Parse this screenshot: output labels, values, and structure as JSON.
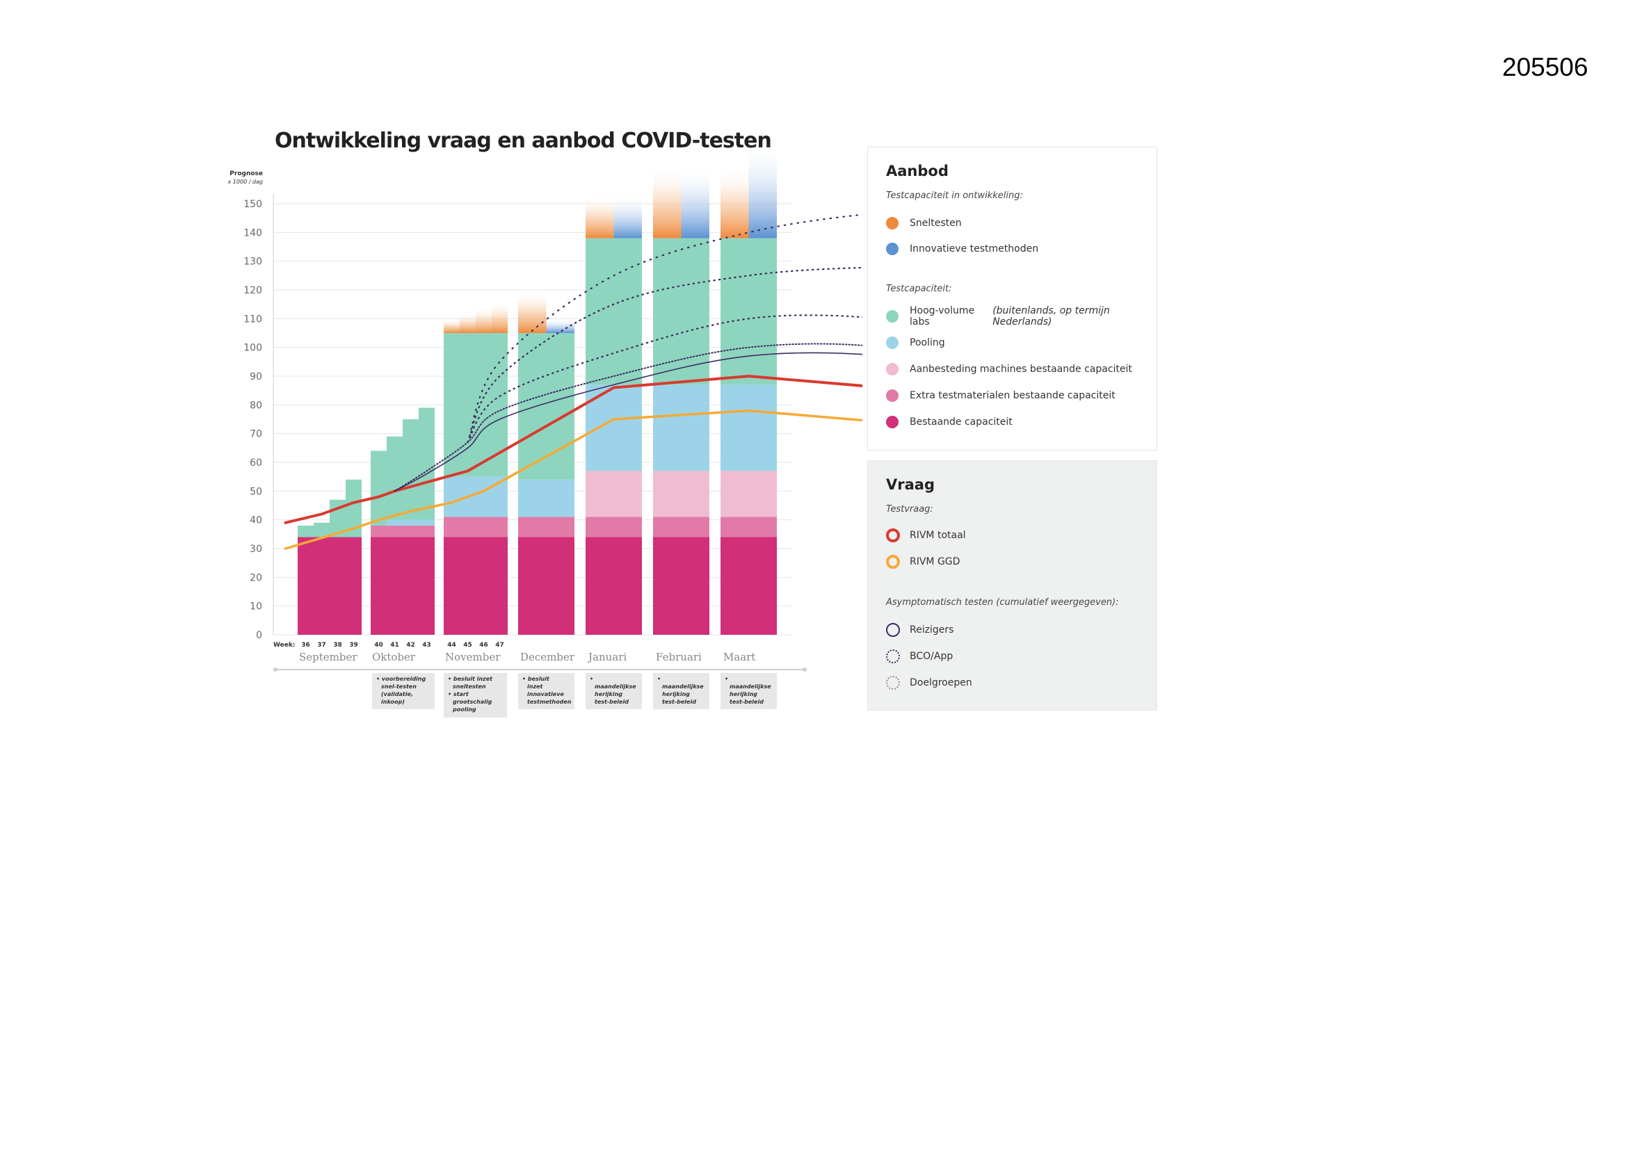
{
  "page_id": "205506",
  "chart_data": {
    "type": "bar",
    "title": "Ontwikkeling vraag en aanbod COVID-testen",
    "ylabel": "Prognose x 1000 / dag",
    "ylim": [
      0,
      150
    ],
    "yticks": [
      0,
      10,
      20,
      30,
      40,
      50,
      60,
      70,
      80,
      90,
      100,
      110,
      120,
      130,
      140,
      150
    ],
    "week_label": "Week:",
    "categories": [
      "36",
      "37",
      "38",
      "39",
      "40",
      "41",
      "42",
      "43",
      "44",
      "45",
      "46",
      "47",
      "December",
      "Januari",
      "Februari",
      "Maart"
    ],
    "months": [
      "September",
      "Oktober",
      "November",
      "December",
      "Januari",
      "Februari",
      "Maart"
    ],
    "series": [
      {
        "name": "Bestaande capaciteit",
        "color": "#d12f78",
        "values": [
          34,
          34,
          34,
          34,
          34,
          34,
          34,
          34,
          34,
          34,
          34,
          34,
          34,
          34,
          34,
          34
        ]
      },
      {
        "name": "Extra testmaterialen bestaande capaciteit",
        "color": "#e27aa8",
        "values": [
          0,
          0,
          0,
          0,
          4,
          4,
          4,
          4,
          7,
          7,
          7,
          7,
          7,
          7,
          7,
          7
        ]
      },
      {
        "name": "Aanbesteding machines bestaande capaciteit",
        "color": "#f0bcd1",
        "values": [
          0,
          0,
          0,
          0,
          0,
          0,
          0,
          0,
          0,
          0,
          0,
          0,
          0,
          16,
          16,
          16
        ]
      },
      {
        "name": "Pooling",
        "color": "#9dd3e8",
        "values": [
          0,
          0,
          0,
          0,
          0,
          2,
          2,
          2,
          14,
          14,
          14,
          14,
          13,
          30,
          30,
          30
        ]
      },
      {
        "name": "Hoog-volume labs",
        "color": "#8ed5bf",
        "values": [
          4,
          5,
          13,
          20,
          26,
          29,
          35,
          39,
          50,
          50,
          50,
          50,
          51,
          51,
          51,
          51
        ]
      },
      {
        "name": "Sneltesten",
        "color": "#ef8a3c",
        "values": [
          0,
          0,
          0,
          0,
          0,
          0,
          0,
          0,
          5,
          7,
          9,
          11,
          15,
          15,
          25,
          25
        ]
      },
      {
        "name": "Innovatieve testmethoden",
        "color": "#5b92d2",
        "values": [
          0,
          0,
          0,
          0,
          0,
          0,
          0,
          0,
          0,
          0,
          0,
          0,
          5,
          15,
          25,
          33
        ]
      }
    ],
    "lines": [
      {
        "name": "RIVM totaal",
        "color": "#d93a30",
        "x": [
          -0.5,
          1,
          3,
          4,
          5,
          9,
          13,
          15,
          17,
          19
        ],
        "y": [
          39,
          42,
          46,
          48,
          50,
          57,
          86,
          90,
          86,
          80
        ]
      },
      {
        "name": "RIVM GGD",
        "color": "#f5aa35",
        "x": [
          -0.5,
          3,
          4,
          6,
          8,
          10,
          13,
          15,
          17,
          19
        ],
        "y": [
          30,
          37,
          40,
          43,
          46,
          50,
          75,
          78,
          74,
          68
        ]
      },
      {
        "name": "Reizigers",
        "color": "#3b2d5f",
        "x": [
          5,
          7,
          9,
          11,
          13,
          15,
          17,
          18.7
        ],
        "y": [
          50,
          56,
          65,
          75,
          87,
          97,
          97,
          89
        ]
      },
      {
        "name": "BCO/App",
        "color": "#3b2d5f",
        "x": [
          5,
          7,
          9,
          11,
          13,
          15,
          17,
          18.7
        ],
        "y": [
          50,
          57,
          67,
          78,
          90,
          100,
          100,
          90
        ]
      },
      {
        "name": "Doelgroepen-1",
        "color": "#3b2d5f",
        "x": [
          9,
          11,
          13,
          15,
          17,
          18.7
        ],
        "y": [
          67,
          83,
          98,
          110,
          110,
          103
        ]
      },
      {
        "name": "Doelgroepen-2",
        "color": "#3b2d5f",
        "x": [
          9,
          11,
          13,
          15,
          17,
          18.7
        ],
        "y": [
          67,
          90,
          115,
          125,
          128,
          128
        ]
      },
      {
        "name": "Doelgroepen-3",
        "color": "#3b2d5f",
        "x": [
          9,
          11,
          13,
          15,
          17,
          18.7
        ],
        "y": [
          67,
          95,
          125,
          140,
          147,
          149
        ]
      }
    ],
    "timeline_notes": [
      {
        "month": "Oktober",
        "text": "• voorbereiding snel-testen (validatie, inkoop)"
      },
      {
        "month": "November",
        "text": "• besluit inzet sneltesten • start grootschalig pooling"
      },
      {
        "month": "December",
        "text": "• besluit inzet innovatieve testmethoden"
      },
      {
        "month": "Januari",
        "text": "• maandelijkse herijking test-beleid"
      },
      {
        "month": "Februari",
        "text": "• maandelijkse herijking test-beleid"
      },
      {
        "month": "Maart",
        "text": "• maandelijkse herijking test-beleid"
      }
    ]
  },
  "legend": {
    "aanbod": {
      "title": "Aanbod",
      "sub1": "Testcapaciteit in ontwikkeling:",
      "sneltesten": "Sneltesten",
      "innovatief": "Innovatieve testmethoden",
      "sub2": "Testcapaciteit:",
      "hoogvolume": "Hoog-volume labs ",
      "hoogvolume_note": "(buitenlands, op termijn Nederlands)",
      "pooling": "Pooling",
      "aanbesteding": "Aanbesteding machines bestaande capaciteit",
      "extra": "Extra testmaterialen bestaande capaciteit",
      "bestaande": "Bestaande capaciteit"
    },
    "vraag": {
      "title": "Vraag",
      "sub1": "Testvraag:",
      "totaal": "RIVM totaal",
      "ggd": "RIVM GGD",
      "sub2": "Asymptomatisch testen (cumulatief weergegeven):",
      "reizigers": "Reizigers",
      "bco": "BCO/App",
      "doelgroepen": "Doelgroepen"
    }
  }
}
